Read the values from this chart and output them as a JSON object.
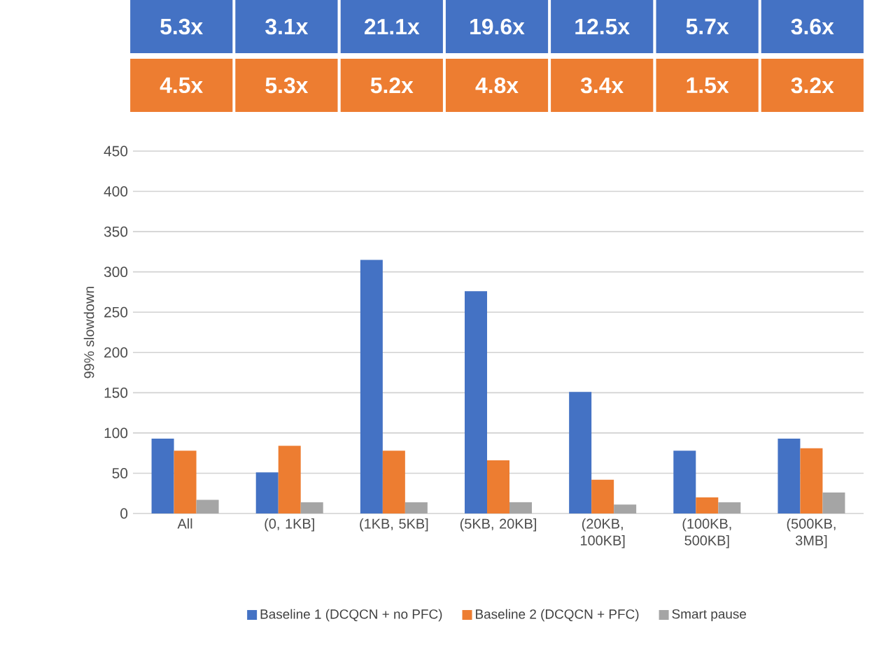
{
  "chart_data": {
    "type": "bar",
    "ylabel": "99% slowdown",
    "categories": [
      "All",
      "(0, 1KB]",
      "(1KB, 5KB]",
      "(5KB, 20KB]",
      "(20KB, 100KB]",
      "(100KB, 500KB]",
      "(500KB, 3MB]"
    ],
    "series": [
      {
        "name": "Baseline 1 (DCQCN + no PFC)",
        "color": "#4472c4",
        "values": [
          93,
          51,
          315,
          276,
          151,
          78,
          93
        ]
      },
      {
        "name": "Baseline 2 (DCQCN + PFC)",
        "color": "#ed7d31",
        "values": [
          78,
          84,
          78,
          66,
          42,
          20,
          81
        ]
      },
      {
        "name": "Smart pause",
        "color": "#a5a5a5",
        "values": [
          17,
          14,
          14,
          14,
          11,
          14,
          26
        ]
      }
    ],
    "ylim": [
      0,
      450
    ],
    "yticks": [
      0,
      50,
      100,
      150,
      200,
      250,
      300,
      350,
      400,
      450
    ],
    "grid": "y",
    "legend": "bottom",
    "annotations": [
      "5.3x",
      "3.1x",
      "21.1x",
      "19.6x",
      "12.5x",
      "5.7x",
      "3.6x",
      "4.5x",
      "5.3x",
      "5.2x",
      "4.8x",
      "3.4x",
      "1.5x",
      "3.2x"
    ]
  }
}
